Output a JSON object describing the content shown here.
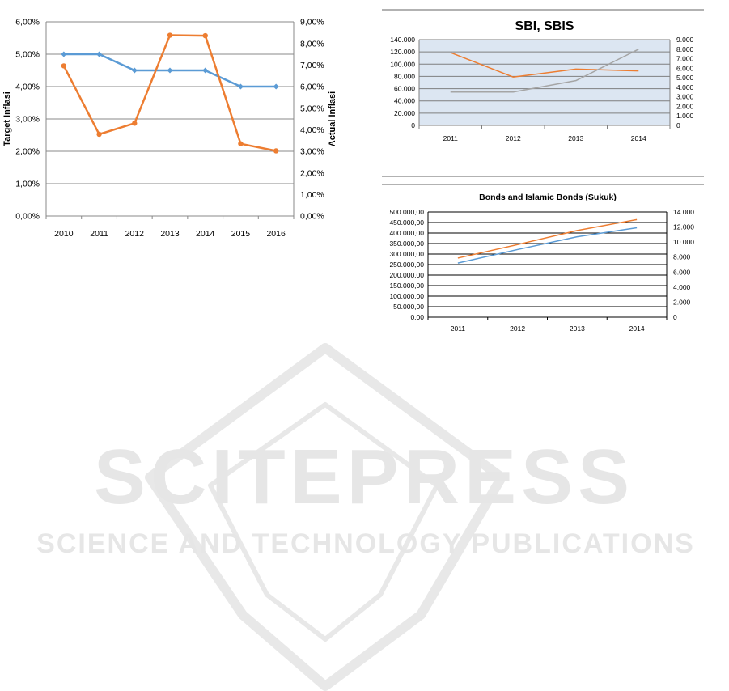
{
  "chart_data": [
    {
      "type": "line",
      "categories": [
        "2010",
        "2011",
        "2012",
        "2013",
        "2014",
        "2015",
        "2016"
      ],
      "ylabel": "Target Inflasi",
      "y2label": "Actual Inflasi",
      "ylim": [
        0,
        6
      ],
      "y2lim": [
        0,
        9
      ],
      "yticks": [
        "0,00%",
        "1,00%",
        "2,00%",
        "3,00%",
        "4,00%",
        "5,00%",
        "6,00%"
      ],
      "y2ticks": [
        "0,00%",
        "1,00%",
        "2,00%",
        "3,00%",
        "4,00%",
        "5,00%",
        "6,00%",
        "7,00%",
        "8,00%",
        "9,00%"
      ],
      "grid": true,
      "series": [
        {
          "axis": "left",
          "color": "#5b9bd5",
          "marker": "diamond",
          "values": [
            5.0,
            5.0,
            4.5,
            4.5,
            4.5,
            4.0,
            4.0
          ]
        },
        {
          "axis": "right",
          "color": "#ed7d31",
          "marker": "circle",
          "values": [
            6.96,
            3.79,
            4.3,
            8.38,
            8.36,
            3.35,
            3.02
          ]
        }
      ]
    },
    {
      "type": "line",
      "title": "SBI, SBIS",
      "categories": [
        "2011",
        "2012",
        "2013",
        "2014"
      ],
      "ylim": [
        0,
        140000
      ],
      "y2lim": [
        0,
        9000
      ],
      "yticks": [
        "0",
        "20.000",
        "40.000",
        "60.000",
        "80.000",
        "100.000",
        "120.000",
        "140.000"
      ],
      "y2ticks": [
        "0",
        "1.000",
        "2.000",
        "3.000",
        "4.000",
        "5.000",
        "6.000",
        "7.000",
        "8.000",
        "9.000"
      ],
      "grid": true,
      "plot_background": "#dce6f2",
      "series": [
        {
          "axis": "left",
          "color": "#ed7d31",
          "values": [
            119000,
            79000,
            92000,
            89000
          ]
        },
        {
          "axis": "right",
          "color": "#a5a5a5",
          "values": [
            3500,
            3500,
            4700,
            8000
          ]
        }
      ]
    },
    {
      "type": "line",
      "title": "Bonds and Islamic Bonds (Sukuk)",
      "categories": [
        "2011",
        "2012",
        "2013",
        "2014"
      ],
      "ylim": [
        0,
        500000
      ],
      "y2lim": [
        0,
        14000
      ],
      "yticks": [
        "0,00",
        "50.000,00",
        "100.000,00",
        "150.000,00",
        "200.000,00",
        "250.000,00",
        "300.000,00",
        "350.000,00",
        "400.000,00",
        "450.000,00",
        "500.000,00"
      ],
      "y2ticks": [
        "0",
        "2.000",
        "4.000",
        "6.000",
        "8.000",
        "10.000",
        "12.000",
        "14.000"
      ],
      "grid": true,
      "series": [
        {
          "axis": "left",
          "color": "#ed7d31",
          "values": [
            281000,
            345000,
            412000,
            464000
          ]
        },
        {
          "axis": "right",
          "color": "#5b9bd5",
          "values": [
            7200,
            9000,
            10700,
            11900
          ]
        }
      ]
    }
  ],
  "watermark": {
    "title": "SCITEPRESS",
    "subtitle": "SCIENCE AND TECHNOLOGY PUBLICATIONS",
    "color": "#e6e6e6"
  }
}
